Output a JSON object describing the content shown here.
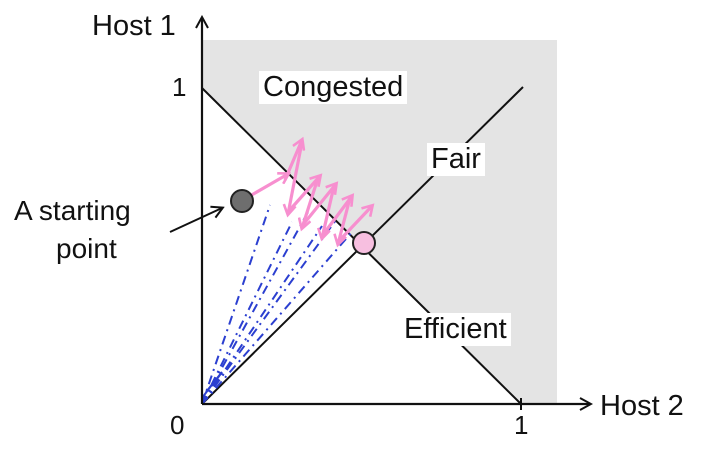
{
  "axes": {
    "y_label": "Host 1",
    "x_label": "Host 2",
    "origin_label": "0",
    "x_tick_label": "1",
    "y_tick_label": "1"
  },
  "regions": {
    "congested_label": "Congested",
    "fair_label": "Fair",
    "efficient_label": "Efficient"
  },
  "annotation": {
    "line1": "A starting",
    "line2": "point"
  },
  "colors": {
    "congested_shade": "#e4e4e4",
    "increase_arrows": "#f78fcf",
    "decrease_path": "#2b3fd0",
    "start_point": "#6e6e6e",
    "fair_point": "#f7bfe0",
    "axes": "#111111"
  }
}
